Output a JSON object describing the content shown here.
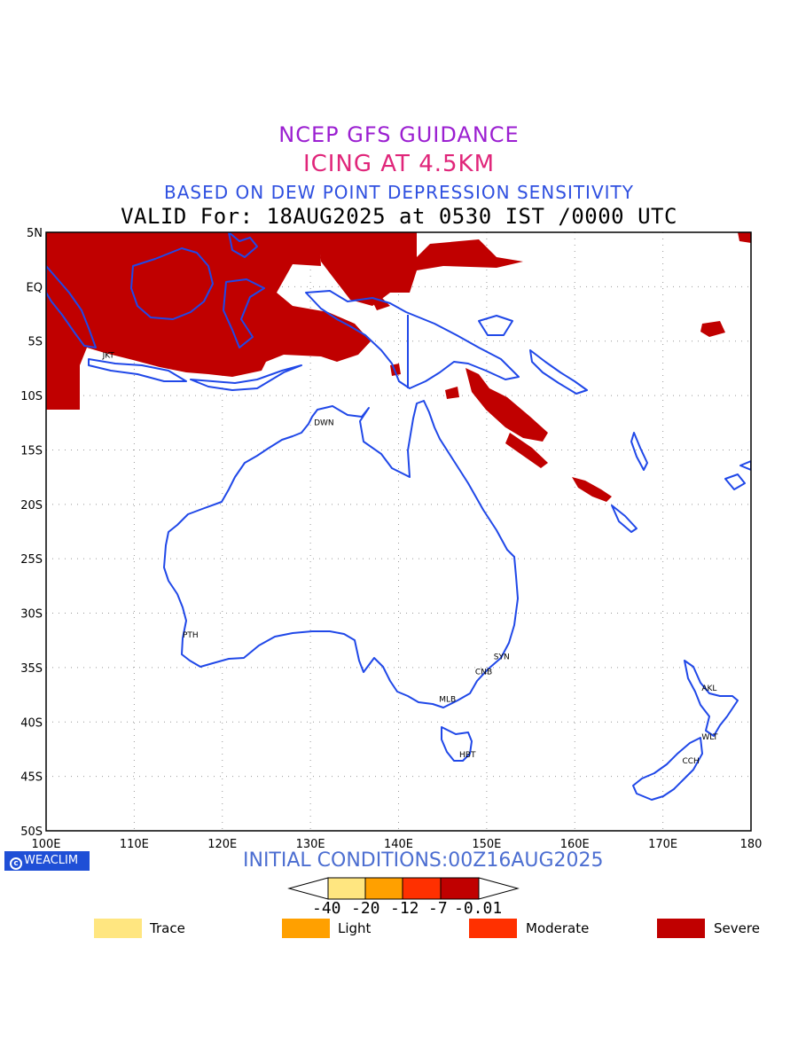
{
  "titles": {
    "line1": {
      "text": "NCEP GFS GUIDANCE",
      "color": "#9b1fd1"
    },
    "line2": {
      "text": "ICING AT 4.5KM",
      "color": "#e0267a"
    },
    "line3": {
      "text": "BASED ON DEW POINT DEPRESSION SENSITIVITY",
      "color": "#2f50e0"
    },
    "line4": {
      "text": "VALID For: 18AUG2025 at 0530 IST /0000 UTC",
      "color": "#000000"
    }
  },
  "map": {
    "lat_range": [
      -50,
      5
    ],
    "lon_range": [
      100,
      180
    ],
    "lat_labels": [
      "5N",
      "EQ",
      "5S",
      "10S",
      "15S",
      "20S",
      "25S",
      "30S",
      "35S",
      "40S",
      "45S",
      "50S"
    ],
    "lon_labels": [
      "100E",
      "110E",
      "120E",
      "130E",
      "140E",
      "150E",
      "160E",
      "170E",
      "180"
    ],
    "coast_color": "#2048e8",
    "icing_color": "#c00000",
    "stations": [
      {
        "code": "JKT",
        "lon": 106.8,
        "lat": -6.2
      },
      {
        "code": "DWN",
        "lon": 130.8,
        "lat": -12.4
      },
      {
        "code": "PTH",
        "lon": 115.9,
        "lat": -31.9
      },
      {
        "code": "SYN",
        "lon": 151.2,
        "lat": -33.9
      },
      {
        "code": "CNB",
        "lon": 149.1,
        "lat": -35.3
      },
      {
        "code": "MLB",
        "lon": 145.0,
        "lat": -37.8
      },
      {
        "code": "HBT",
        "lon": 147.3,
        "lat": -42.9
      },
      {
        "code": "AKL",
        "lon": 174.8,
        "lat": -36.8
      },
      {
        "code": "WLT",
        "lon": 174.8,
        "lat": -41.3
      },
      {
        "code": "CCH",
        "lon": 172.6,
        "lat": -43.5
      }
    ]
  },
  "brand": {
    "label": "WEACLIM"
  },
  "initial_conditions": "INITIAL CONDITIONS:00Z16AUG2025",
  "colorbar": {
    "colors": [
      "#ffe680",
      "#ffa000",
      "#ff3000",
      "#c00000"
    ],
    "ticks": [
      "-40",
      "-20",
      "-12",
      "-7",
      "-0.01"
    ]
  },
  "legend": [
    {
      "label": "Trace",
      "color": "#ffe680"
    },
    {
      "label": "Light",
      "color": "#ffa000"
    },
    {
      "label": "Moderate",
      "color": "#ff3000"
    },
    {
      "label": "Severe",
      "color": "#c00000"
    }
  ]
}
